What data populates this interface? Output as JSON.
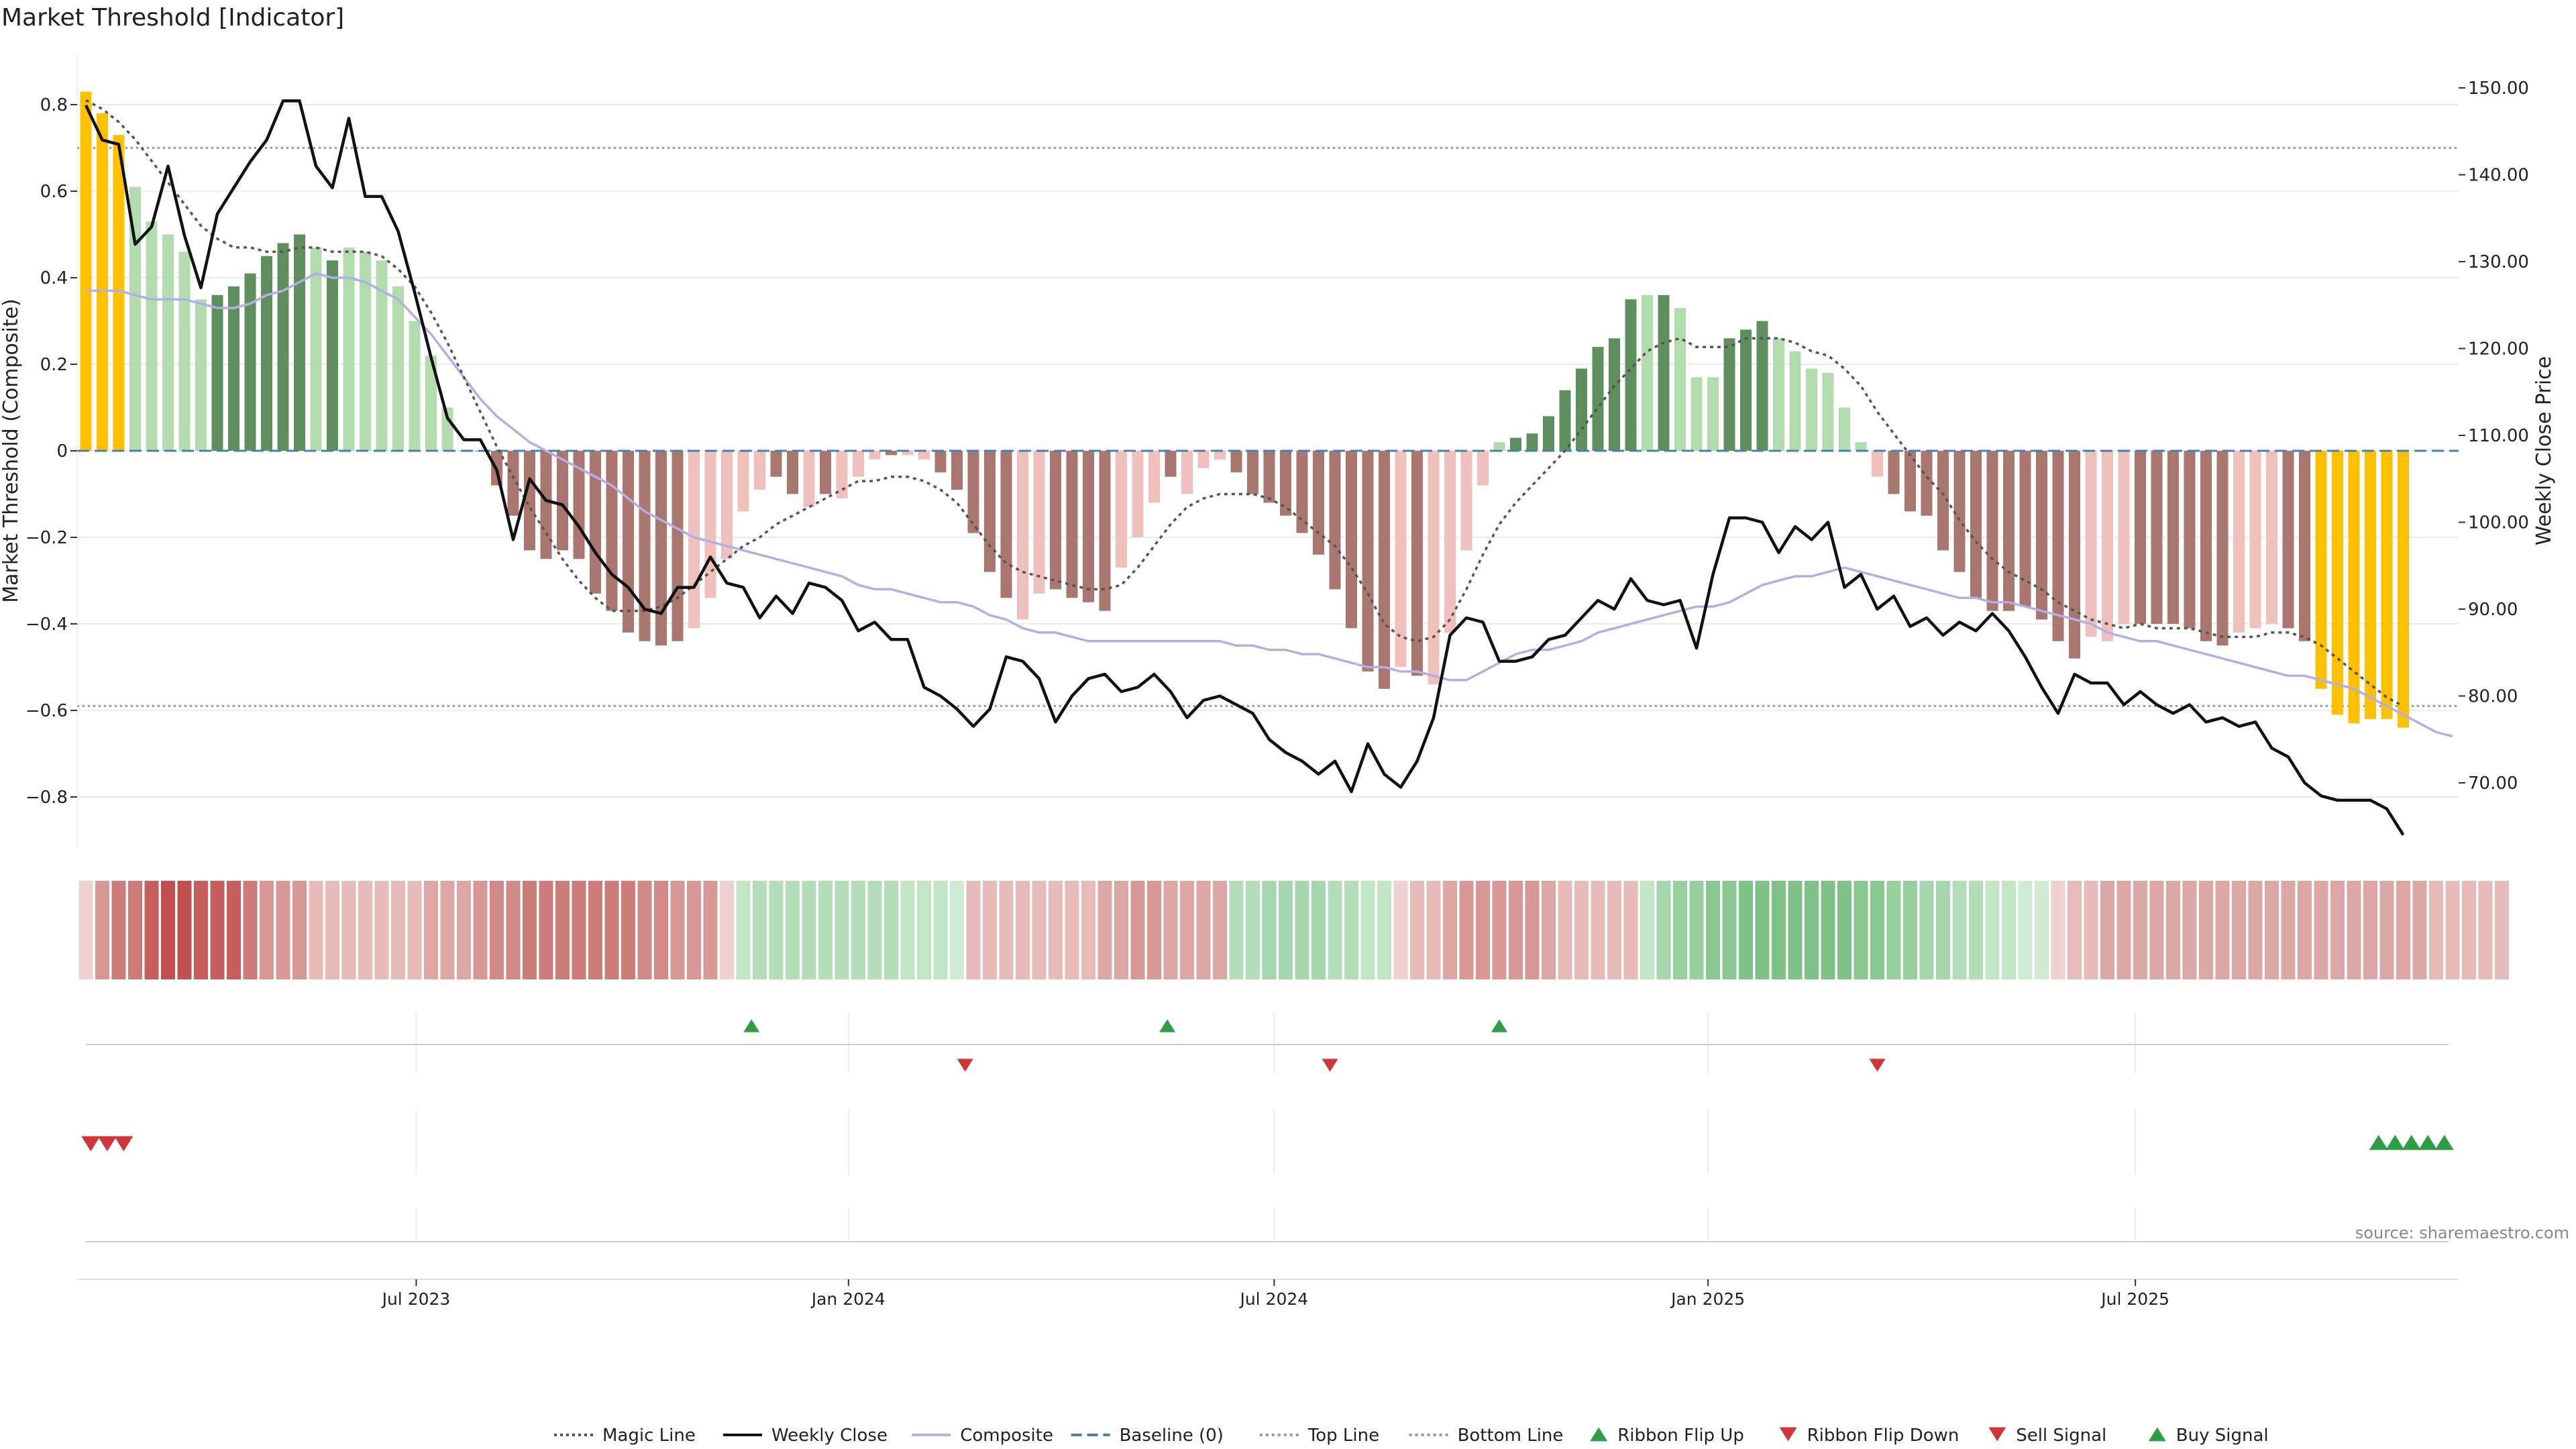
{
  "title": "Market Threshold [Indicator]",
  "source": "source: sharemaestro.com",
  "chart_data": {
    "type": "bar",
    "title": "Market Threshold [Indicator]",
    "y_left": {
      "label": "Market Threshold (Composite)",
      "range": [
        -0.92,
        0.93
      ],
      "ticks": [
        0.8,
        0.6,
        0.4,
        0.2,
        0,
        -0.2,
        -0.4,
        -0.6,
        -0.8
      ],
      "tick_labels": [
        "0.8",
        "0.6",
        "0.4",
        "0.2",
        "0",
        "−0.2",
        "−0.4",
        "−0.6",
        "−0.8"
      ]
    },
    "y_right": {
      "label": "Weekly Close Price",
      "range": [
        62.5,
        153.0
      ],
      "ticks": [
        150,
        140,
        130,
        120,
        110,
        100,
        90,
        80,
        70
      ],
      "tick_labels": [
        "150.00",
        "140.00",
        "130.00",
        "120.00",
        "110.00",
        "100.00",
        "90.00",
        "80.00",
        "70.00"
      ]
    },
    "x_axis": {
      "tick_labels": [
        "Jul 2023",
        "Jan 2024",
        "Jul 2024",
        "Jan 2025",
        "Jul 2025"
      ],
      "tick_positions": [
        20.1,
        46.4,
        72.3,
        98.7,
        124.7
      ],
      "grid": true
    },
    "weeks": 145,
    "top_line": 0.7,
    "bottom_line": -0.59,
    "composite": [
      0.83,
      0.78,
      0.73,
      0.61,
      0.53,
      0.5,
      0.46,
      0.35,
      0.36,
      0.38,
      0.41,
      0.45,
      0.48,
      0.5,
      0.47,
      0.44,
      0.47,
      0.46,
      0.44,
      0.38,
      0.3,
      0.22,
      0.1,
      0.0,
      0.0,
      -0.08,
      -0.15,
      -0.23,
      -0.25,
      -0.23,
      -0.25,
      -0.33,
      -0.37,
      -0.42,
      -0.44,
      -0.45,
      -0.44,
      -0.41,
      -0.34,
      -0.25,
      -0.14,
      -0.09,
      -0.06,
      -0.1,
      -0.13,
      -0.1,
      -0.11,
      -0.06,
      -0.02,
      -0.01,
      -0.01,
      -0.02,
      -0.05,
      -0.09,
      -0.19,
      -0.28,
      -0.34,
      -0.39,
      -0.33,
      -0.32,
      -0.34,
      -0.35,
      -0.37,
      -0.27,
      -0.2,
      -0.12,
      -0.06,
      -0.1,
      -0.04,
      -0.02,
      -0.05,
      -0.1,
      -0.12,
      -0.15,
      -0.19,
      -0.24,
      -0.32,
      -0.41,
      -0.51,
      -0.55,
      -0.5,
      -0.52,
      -0.54,
      -0.42,
      -0.23,
      -0.08,
      0.02,
      0.03,
      0.04,
      0.08,
      0.14,
      0.19,
      0.24,
      0.26,
      0.35,
      0.36,
      0.36,
      0.33,
      0.17,
      0.17,
      0.26,
      0.28,
      0.3,
      0.26,
      0.23,
      0.19,
      0.18,
      0.1,
      0.02,
      -0.06,
      -0.1,
      -0.14,
      -0.15,
      -0.23,
      -0.28,
      -0.34,
      -0.37,
      -0.37,
      -0.36,
      -0.39,
      -0.44,
      -0.48,
      -0.43,
      -0.44,
      -0.4,
      -0.4,
      -0.4,
      -0.4,
      -0.41,
      -0.44,
      -0.45,
      -0.42,
      -0.41,
      -0.4,
      -0.41,
      -0.44,
      -0.55,
      -0.61,
      -0.63,
      -0.62,
      -0.62,
      -0.64
    ],
    "bar_colors": [
      "#FFC000",
      "#FFC000",
      "#FFC000",
      "#B2DBAE",
      "#B2DBAE",
      "#B2DBAE",
      "#B2DBAE",
      "#B2DBAE",
      "#5F8E5F",
      "#5F8E5F",
      "#5F8E5F",
      "#5F8E5F",
      "#5F8E5F",
      "#5F8E5F",
      "#B2DBAE",
      "#5F8E5F",
      "#B2DBAE",
      "#B2DBAE",
      "#B2DBAE",
      "#B2DBAE",
      "#B2DBAE",
      "#B2DBAE",
      "#B2DBAE",
      "#B2DBAE",
      "#A97770",
      "#A97770",
      "#A97770",
      "#A97770",
      "#A97770",
      "#A97770",
      "#A97770",
      "#A97770",
      "#A97770",
      "#A97770",
      "#A97770",
      "#A97770",
      "#A97770",
      "#EFC0BC",
      "#EFC0BC",
      "#EFC0BC",
      "#EFC0BC",
      "#EFC0BC",
      "#A97770",
      "#A97770",
      "#EFC0BC",
      "#A97770",
      "#EFC0BC",
      "#EFC0BC",
      "#EFC0BC",
      "#A97770",
      "#EFC0BC",
      "#EFC0BC",
      "#A97770",
      "#A97770",
      "#A97770",
      "#A97770",
      "#A97770",
      "#EFC0BC",
      "#EFC0BC",
      "#A97770",
      "#A97770",
      "#A97770",
      "#A97770",
      "#EFC0BC",
      "#EFC0BC",
      "#EFC0BC",
      "#A97770",
      "#EFC0BC",
      "#EFC0BC",
      "#EFC0BC",
      "#A97770",
      "#A97770",
      "#A97770",
      "#A97770",
      "#A97770",
      "#A97770",
      "#A97770",
      "#A97770",
      "#A97770",
      "#A97770",
      "#EFC0BC",
      "#A97770",
      "#EFC0BC",
      "#EFC0BC",
      "#EFC0BC",
      "#EFC0BC",
      "#B2DBAE",
      "#5F8E5F",
      "#5F8E5F",
      "#5F8E5F",
      "#5F8E5F",
      "#5F8E5F",
      "#5F8E5F",
      "#5F8E5F",
      "#5F8E5F",
      "#B2DBAE",
      "#5F8E5F",
      "#B2DBAE",
      "#B2DBAE",
      "#B2DBAE",
      "#5F8E5F",
      "#5F8E5F",
      "#5F8E5F",
      "#B2DBAE",
      "#B2DBAE",
      "#B2DBAE",
      "#B2DBAE",
      "#B2DBAE",
      "#B2DBAE",
      "#EFC0BC",
      "#A97770",
      "#A97770",
      "#A97770",
      "#A97770",
      "#A97770",
      "#A97770",
      "#A97770",
      "#A97770",
      "#A97770",
      "#A97770",
      "#A97770",
      "#A97770",
      "#EFC0BC",
      "#EFC0BC",
      "#EFC0BC",
      "#A97770",
      "#A97770",
      "#A97770",
      "#A97770",
      "#A97770",
      "#A97770",
      "#EFC0BC",
      "#EFC0BC",
      "#EFC0BC",
      "#A97770",
      "#A97770",
      "#FFC000",
      "#FFC000",
      "#FFC000",
      "#FFC000",
      "#FFC000",
      "#FFC000"
    ],
    "magic_line": [
      0.81,
      0.79,
      0.76,
      0.72,
      0.67,
      0.62,
      0.57,
      0.52,
      0.49,
      0.47,
      0.47,
      0.46,
      0.46,
      0.47,
      0.47,
      0.46,
      0.46,
      0.46,
      0.45,
      0.42,
      0.38,
      0.32,
      0.25,
      0.17,
      0.09,
      0.01,
      -0.06,
      -0.13,
      -0.19,
      -0.25,
      -0.3,
      -0.34,
      -0.37,
      -0.37,
      -0.37,
      -0.36,
      -0.34,
      -0.31,
      -0.28,
      -0.25,
      -0.22,
      -0.2,
      -0.17,
      -0.15,
      -0.13,
      -0.11,
      -0.09,
      -0.07,
      -0.07,
      -0.06,
      -0.06,
      -0.07,
      -0.09,
      -0.12,
      -0.17,
      -0.22,
      -0.26,
      -0.28,
      -0.29,
      -0.3,
      -0.31,
      -0.32,
      -0.32,
      -0.31,
      -0.27,
      -0.22,
      -0.17,
      -0.13,
      -0.11,
      -0.1,
      -0.1,
      -0.1,
      -0.11,
      -0.13,
      -0.16,
      -0.19,
      -0.22,
      -0.27,
      -0.33,
      -0.4,
      -0.43,
      -0.44,
      -0.43,
      -0.39,
      -0.32,
      -0.24,
      -0.17,
      -0.12,
      -0.08,
      -0.04,
      0.0,
      0.05,
      0.1,
      0.15,
      0.19,
      0.23,
      0.25,
      0.26,
      0.24,
      0.24,
      0.24,
      0.26,
      0.26,
      0.26,
      0.25,
      0.23,
      0.22,
      0.19,
      0.15,
      0.09,
      0.04,
      -0.01,
      -0.06,
      -0.1,
      -0.16,
      -0.21,
      -0.25,
      -0.28,
      -0.3,
      -0.32,
      -0.35,
      -0.37,
      -0.39,
      -0.4,
      -0.41,
      -0.4,
      -0.41,
      -0.41,
      -0.41,
      -0.42,
      -0.43,
      -0.43,
      -0.43,
      -0.42,
      -0.42,
      -0.43,
      -0.45,
      -0.48,
      -0.51,
      -0.54,
      -0.57,
      -0.59
    ],
    "composite_line": [
      0.37,
      0.37,
      0.37,
      0.36,
      0.35,
      0.35,
      0.35,
      0.34,
      0.33,
      0.33,
      0.34,
      0.36,
      0.37,
      0.39,
      0.41,
      0.4,
      0.4,
      0.39,
      0.37,
      0.35,
      0.31,
      0.27,
      0.22,
      0.17,
      0.12,
      0.08,
      0.05,
      0.02,
      0.0,
      -0.02,
      -0.04,
      -0.06,
      -0.08,
      -0.11,
      -0.14,
      -0.16,
      -0.18,
      -0.2,
      -0.21,
      -0.22,
      -0.23,
      -0.24,
      -0.25,
      -0.26,
      -0.27,
      -0.28,
      -0.29,
      -0.31,
      -0.32,
      -0.32,
      -0.33,
      -0.34,
      -0.35,
      -0.35,
      -0.36,
      -0.38,
      -0.39,
      -0.41,
      -0.42,
      -0.42,
      -0.43,
      -0.44,
      -0.44,
      -0.44,
      -0.44,
      -0.44,
      -0.44,
      -0.44,
      -0.44,
      -0.44,
      -0.45,
      -0.45,
      -0.46,
      -0.46,
      -0.47,
      -0.47,
      -0.48,
      -0.49,
      -0.5,
      -0.5,
      -0.51,
      -0.51,
      -0.52,
      -0.53,
      -0.53,
      -0.51,
      -0.49,
      -0.47,
      -0.46,
      -0.46,
      -0.45,
      -0.44,
      -0.42,
      -0.41,
      -0.4,
      -0.39,
      -0.38,
      -0.37,
      -0.36,
      -0.36,
      -0.35,
      -0.33,
      -0.31,
      -0.3,
      -0.29,
      -0.29,
      -0.28,
      -0.27,
      -0.28,
      -0.29,
      -0.3,
      -0.31,
      -0.32,
      -0.33,
      -0.34,
      -0.34,
      -0.35,
      -0.35,
      -0.36,
      -0.37,
      -0.38,
      -0.39,
      -0.4,
      -0.42,
      -0.43,
      -0.44,
      -0.44,
      -0.45,
      -0.46,
      -0.47,
      -0.48,
      -0.49,
      -0.5,
      -0.51,
      -0.52,
      -0.52,
      -0.53,
      -0.54,
      -0.55,
      -0.57,
      -0.59,
      -0.61,
      -0.63,
      -0.65,
      -0.66
    ],
    "weekly_close": [
      148.0,
      144.0,
      143.5,
      132.0,
      134.0,
      141.0,
      133.0,
      127.0,
      135.5,
      138.5,
      141.5,
      144.0,
      148.5,
      148.5,
      141.0,
      138.5,
      146.5,
      137.5,
      137.5,
      133.5,
      126.5,
      119.0,
      112.0,
      109.5,
      109.5,
      106.0,
      98.0,
      105.0,
      102.5,
      102.0,
      99.5,
      96.5,
      94.0,
      92.5,
      90.0,
      89.5,
      92.5,
      92.5,
      96.0,
      93.0,
      92.5,
      89.0,
      91.5,
      89.5,
      93.0,
      92.5,
      91.0,
      87.5,
      88.5,
      86.5,
      86.5,
      81.0,
      80.0,
      78.5,
      76.5,
      78.5,
      84.5,
      84.0,
      82.0,
      77.0,
      80.0,
      82.0,
      82.5,
      80.5,
      81.0,
      82.5,
      80.5,
      77.5,
      79.5,
      80.0,
      79.0,
      78.0,
      75.0,
      73.5,
      72.5,
      71.0,
      72.5,
      69.0,
      74.5,
      71.0,
      69.5,
      72.5,
      77.5,
      87.0,
      89.0,
      88.5,
      84.0,
      84.0,
      84.5,
      86.5,
      87.0,
      89.0,
      91.0,
      90.0,
      93.5,
      91.0,
      90.5,
      91.0,
      85.5,
      94.0,
      100.5,
      100.5,
      100.0,
      96.5,
      99.5,
      98.0,
      100.0,
      92.5,
      94.0,
      90.0,
      91.5,
      88.0,
      89.0,
      87.0,
      88.5,
      87.5,
      89.5,
      87.5,
      84.5,
      81.0,
      78.0,
      82.5,
      81.5,
      81.5,
      79.0,
      80.5,
      79.0,
      78.0,
      79.0,
      77.0,
      77.5,
      76.5,
      77.0,
      74.0,
      73.0,
      70.0,
      68.5,
      68.0,
      68.0,
      68.0,
      67.0,
      64.0
    ],
    "ribbon_colors": [
      "#EFD2D0",
      "#D89896",
      "#CE7C7A",
      "#CE7C7A",
      "#C65E5E",
      "#C25050",
      "#C25050",
      "#C65E5E",
      "#C65E5E",
      "#C65E5E",
      "#CE7C7A",
      "#D89896",
      "#D89896",
      "#D89896",
      "#E6BBB9",
      "#E6BBB9",
      "#E6BBB9",
      "#E6BBB9",
      "#E6BBB9",
      "#E6BBB9",
      "#E6BBB9",
      "#DDA7A5",
      "#DDA7A5",
      "#DDA7A5",
      "#D89896",
      "#D28A88",
      "#D28A88",
      "#CE7C7A",
      "#CE7C7A",
      "#CE7C7A",
      "#CE7C7A",
      "#CE7C7A",
      "#CE7C7A",
      "#CE7C7A",
      "#D28A88",
      "#D28A88",
      "#D89896",
      "#D89896",
      "#D89896",
      "#EFD2D0",
      "#C2E4C7",
      "#B4DDBA",
      "#B4DDBA",
      "#B4DDBA",
      "#B4DDBA",
      "#B4DDBA",
      "#B4DDBA",
      "#B4DDBA",
      "#B4DDBA",
      "#B4DDBA",
      "#C2E4C7",
      "#C2E4C7",
      "#C2E4C7",
      "#D0EBD4",
      "#E6BBB9",
      "#E6BBB9",
      "#E6BBB9",
      "#E6BBB9",
      "#E6BBB9",
      "#E6BBB9",
      "#E6BBB9",
      "#E6BBB9",
      "#DDA7A5",
      "#DDA7A5",
      "#D89896",
      "#D89896",
      "#DDA7A5",
      "#DDA7A5",
      "#DDA7A5",
      "#DDA7A5",
      "#B4DDBA",
      "#B4DDBA",
      "#A6D6AD",
      "#A6D6AD",
      "#A6D6AD",
      "#A6D6AD",
      "#B4DDBA",
      "#B4DDBA",
      "#C2E4C7",
      "#C2E4C7",
      "#EFD2D0",
      "#E6BBB9",
      "#E6BBB9",
      "#DDA7A5",
      "#D89896",
      "#D89896",
      "#D89896",
      "#D89896",
      "#D89896",
      "#DDA7A5",
      "#E6BBB9",
      "#E6BBB9",
      "#E6BBB9",
      "#E6BBB9",
      "#E6BBB9",
      "#C2E4C7",
      "#A6D6AD",
      "#98CF9F",
      "#98CF9F",
      "#8AC892",
      "#8AC892",
      "#7FC288",
      "#7FC288",
      "#7FC288",
      "#7FC288",
      "#7FC288",
      "#7FC288",
      "#7FC288",
      "#8AC892",
      "#8AC892",
      "#98CF9F",
      "#98CF9F",
      "#A6D6AD",
      "#A6D6AD",
      "#B4DDBA",
      "#B4DDBA",
      "#C2E4C7",
      "#C2E4C7",
      "#D0EBD4",
      "#D0EBD4",
      "#EFD2D0",
      "#E6BBB9",
      "#E6BBB9",
      "#DDA7A5",
      "#DDA7A5",
      "#DDA7A5",
      "#DDA7A5",
      "#DDA7A5",
      "#DDA7A5",
      "#DDA7A5",
      "#DDA7A5",
      "#DDA7A5",
      "#DDA7A5",
      "#DDA7A5",
      "#DDA7A5",
      "#DDA7A5",
      "#DDA7A5",
      "#DDA7A5",
      "#DDA7A5",
      "#DDA7A5",
      "#DDA7A5",
      "#DDA7A5",
      "#DDA7A5",
      "#E6BBB9",
      "#E6BBB9",
      "#E6BBB9",
      "#E6BBB9",
      "#E6BBB9"
    ],
    "ribbon_flip_up_weeks": [
      40.5,
      65.8,
      86.0
    ],
    "ribbon_flip_down_weeks": [
      53.5,
      75.7,
      109.0
    ],
    "sell_signal_weeks": [
      0.3,
      1.3,
      2.3
    ],
    "buy_signal_weeks": [
      139.5,
      140.5,
      141.5,
      142.5,
      143.5
    ],
    "series_colors": {
      "magic_line": "#555555",
      "weekly_close": "#111111",
      "composite": "#b3aee6",
      "baseline": "#4a7fb0",
      "top_line": "#999999",
      "bottom_line": "#999999",
      "flip_up": "#2e9e46",
      "flip_down": "#d0353a",
      "sell": "#d0353a",
      "buy": "#2e9e46"
    },
    "legend": {
      "position": "bottom",
      "items": [
        {
          "label": "Magic Line",
          "symbol": "dotted-line",
          "color": "#555555"
        },
        {
          "label": "Weekly Close",
          "symbol": "solid-line",
          "color": "#111111"
        },
        {
          "label": "Composite",
          "symbol": "solid-line",
          "color": "#b3aee6"
        },
        {
          "label": "Baseline (0)",
          "symbol": "dashed-line",
          "color": "#4a7fb0"
        },
        {
          "label": "Top Line",
          "symbol": "dotted-line",
          "color": "#999999"
        },
        {
          "label": "Bottom Line",
          "symbol": "dotted-line",
          "color": "#999999"
        },
        {
          "label": "Ribbon Flip Up",
          "symbol": "triangle-up",
          "color": "#2e9e46"
        },
        {
          "label": "Ribbon Flip Down",
          "symbol": "triangle-down",
          "color": "#d0353a"
        },
        {
          "label": "Sell Signal",
          "symbol": "triangle-down",
          "color": "#d0353a"
        },
        {
          "label": "Buy Signal",
          "symbol": "triangle-up",
          "color": "#2e9e46"
        }
      ]
    }
  }
}
